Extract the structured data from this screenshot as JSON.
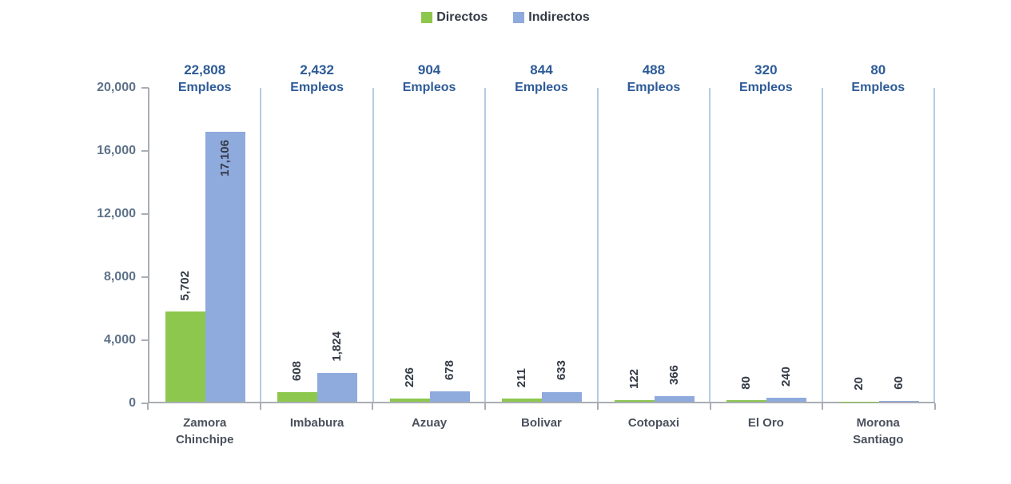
{
  "legend": {
    "items": [
      {
        "label": "Directos",
        "color": "#8dc74e"
      },
      {
        "label": "Indirectos",
        "color": "#8faadc"
      }
    ],
    "position": "top"
  },
  "colors": {
    "directos_green": "#8dc74e",
    "indirectos_blue": "#8faadc",
    "group_total_blue": "#2e5b97",
    "value_label": "#333a45",
    "y_tick_label": "#5e7288",
    "axis_line": "#a9adb3",
    "group_separator": "#b6cbe4",
    "background": "#ffffff"
  },
  "chart_data": {
    "type": "bar",
    "title": "",
    "xlabel": "",
    "ylabel": "",
    "grid": false,
    "legend_position": "top",
    "categories": [
      "Zamora Chinchipe",
      "Imbabura",
      "Azuay",
      "Bolivar",
      "Cotopaxi",
      "El Oro",
      "Morona Santiago"
    ],
    "group_totals": [
      "22,808",
      "2,432",
      "904",
      "844",
      "488",
      "320",
      "80"
    ],
    "group_total_suffix": "Empleos",
    "series": [
      {
        "name": "Directos",
        "color": "#8dc74e",
        "values": [
          5702,
          608,
          226,
          211,
          122,
          80,
          20
        ],
        "labels": [
          "5,702",
          "608",
          "226",
          "211",
          "122",
          "80",
          "20"
        ]
      },
      {
        "name": "Indirectos",
        "color": "#8faadc",
        "values": [
          17106,
          1824,
          678,
          633,
          366,
          240,
          60
        ],
        "labels": [
          "17,106",
          "1,824",
          "678",
          "633",
          "366",
          "240",
          "60"
        ]
      }
    ],
    "y_axis": {
      "min": 0,
      "max": 20000,
      "step": 4000,
      "tick_labels": [
        "0",
        "4,000",
        "8,000",
        "12,000",
        "16,000",
        "20,000"
      ]
    }
  }
}
